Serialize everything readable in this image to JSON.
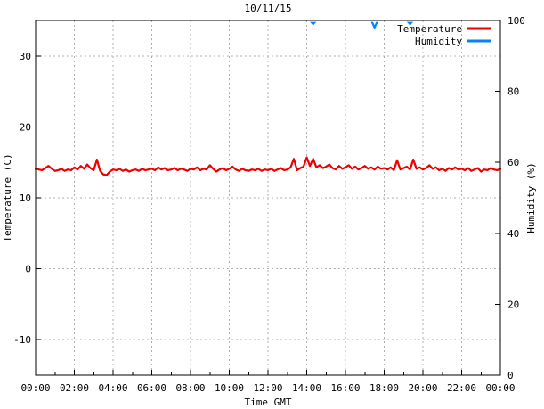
{
  "chart_data": {
    "type": "line",
    "title": "10/11/15",
    "xlabel": "Time GMT",
    "ylabel_left": "Temperature (C)",
    "ylabel_right": "Humidity (%)",
    "x_range_hours": [
      0,
      24
    ],
    "x_major_ticks": {
      "hours": [
        0,
        2,
        4,
        6,
        8,
        10,
        12,
        14,
        16,
        18,
        20,
        22,
        24
      ],
      "labels": [
        "00:00",
        "02:00",
        "04:00",
        "06:00",
        "08:00",
        "10:00",
        "12:00",
        "14:00",
        "16:00",
        "18:00",
        "20:00",
        "22:00",
        "00:00"
      ]
    },
    "x_minor_step_hours": 1,
    "y_left_range": [
      -15,
      35
    ],
    "y_left_ticks": [
      -10,
      0,
      10,
      20,
      30
    ],
    "y_right_range": [
      0,
      100
    ],
    "y_right_ticks": [
      0,
      20,
      40,
      60,
      80,
      100
    ],
    "grid": true,
    "grid_color": "#b0b0b0",
    "legend_position": "top-right-inside",
    "series": [
      {
        "name": "Temperature",
        "axis": "left",
        "color": "#ee0000",
        "x_start_hour": 0,
        "x_step_minutes": 10,
        "values": [
          14.1,
          14.0,
          13.9,
          14.2,
          14.5,
          14.1,
          13.8,
          13.9,
          14.1,
          13.8,
          14.0,
          13.9,
          14.3,
          14.0,
          14.5,
          14.1,
          14.7,
          14.2,
          13.9,
          15.4,
          13.8,
          13.3,
          13.2,
          13.7,
          14.0,
          13.9,
          14.1,
          13.8,
          14.0,
          13.7,
          13.9,
          14.0,
          13.8,
          14.1,
          13.9,
          14.0,
          14.1,
          13.9,
          14.3,
          14.0,
          14.2,
          13.9,
          14.0,
          14.2,
          13.9,
          14.1,
          14.0,
          13.8,
          14.1,
          14.0,
          14.3,
          13.9,
          14.1,
          14.0,
          14.6,
          14.1,
          13.7,
          14.0,
          14.2,
          13.9,
          14.1,
          14.4,
          14.0,
          13.8,
          14.1,
          13.9,
          13.8,
          14.0,
          13.9,
          14.1,
          13.8,
          14.0,
          13.9,
          14.1,
          13.8,
          14.0,
          14.2,
          13.9,
          14.0,
          14.3,
          15.5,
          13.9,
          14.2,
          14.4,
          15.7,
          14.5,
          15.5,
          14.3,
          14.6,
          14.2,
          14.4,
          14.7,
          14.2,
          14.0,
          14.5,
          14.1,
          14.3,
          14.6,
          14.1,
          14.4,
          14.0,
          14.2,
          14.5,
          14.1,
          14.3,
          14.0,
          14.4,
          14.1,
          14.2,
          14.0,
          14.3,
          13.9,
          15.3,
          14.0,
          14.2,
          14.4,
          14.0,
          15.4,
          14.1,
          14.3,
          14.0,
          14.2,
          14.6,
          14.1,
          14.3,
          13.9,
          14.1,
          13.8,
          14.2,
          14.0,
          14.3,
          14.0,
          14.1,
          13.9,
          14.2,
          13.8,
          14.0,
          14.2,
          13.7,
          14.0,
          13.9,
          14.2,
          14.0,
          13.9,
          14.1
        ]
      },
      {
        "name": "Humidity",
        "axis": "right",
        "color": "#0084ff",
        "x_start_hour": 0,
        "x_step_minutes": 10,
        "values": [
          100,
          100,
          100,
          100,
          100,
          100,
          100,
          100,
          100,
          100,
          100,
          100,
          100,
          100,
          100,
          100,
          100,
          100,
          100,
          100,
          100,
          100,
          100,
          100,
          100,
          100,
          100,
          100,
          100,
          100,
          100,
          100,
          100,
          100,
          100,
          100,
          100,
          100,
          100,
          100,
          100,
          100,
          100,
          100,
          100,
          100,
          100,
          100,
          100,
          100,
          100,
          100,
          100,
          100,
          100,
          100,
          100,
          100,
          100,
          100,
          100,
          100,
          100,
          100,
          100,
          100,
          100,
          100,
          100,
          100,
          100,
          100,
          100,
          100,
          100,
          100,
          100,
          100,
          100,
          100,
          100,
          100,
          100,
          100,
          100,
          100,
          99,
          100,
          100,
          100,
          100,
          100,
          100,
          100,
          100,
          100,
          100,
          100,
          100,
          100,
          100,
          100,
          100,
          100,
          100,
          98,
          100,
          100,
          100,
          100,
          100,
          100,
          100,
          100,
          100,
          100,
          99,
          100,
          100,
          100,
          100,
          100,
          100,
          100,
          100,
          100,
          100,
          100,
          100,
          100,
          100,
          100,
          100,
          100,
          100,
          100,
          100,
          100,
          100,
          100,
          100,
          100,
          100,
          100,
          100
        ]
      }
    ]
  }
}
